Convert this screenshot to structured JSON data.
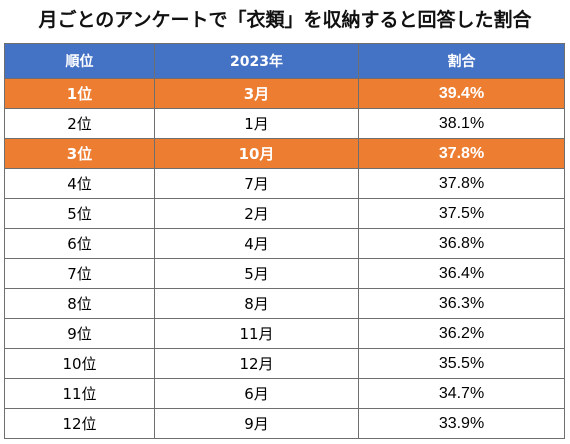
{
  "title": "月ごとのアンケートで「衣類」を収納すると回答した割合",
  "colors": {
    "header_bg": "#4472c4",
    "highlight_bg": "#ed7d31",
    "border": "#6f6f6f"
  },
  "table": {
    "headers": [
      "順位",
      "2023年",
      "割合"
    ],
    "rows": [
      {
        "rank": "1位",
        "month": "3月",
        "ratio": "39.4%",
        "highlight": true
      },
      {
        "rank": "2位",
        "month": "1月",
        "ratio": "38.1%",
        "highlight": false
      },
      {
        "rank": "3位",
        "month": "10月",
        "ratio": "37.8%",
        "highlight": true
      },
      {
        "rank": "4位",
        "month": "7月",
        "ratio": "37.8%",
        "highlight": false
      },
      {
        "rank": "5位",
        "month": "2月",
        "ratio": "37.5%",
        "highlight": false
      },
      {
        "rank": "6位",
        "month": "4月",
        "ratio": "36.8%",
        "highlight": false
      },
      {
        "rank": "7位",
        "month": "5月",
        "ratio": "36.4%",
        "highlight": false
      },
      {
        "rank": "8位",
        "month": "8月",
        "ratio": "36.3%",
        "highlight": false
      },
      {
        "rank": "9位",
        "month": "11月",
        "ratio": "36.2%",
        "highlight": false
      },
      {
        "rank": "10位",
        "month": "12月",
        "ratio": "35.5%",
        "highlight": false
      },
      {
        "rank": "11位",
        "month": "6月",
        "ratio": "34.7%",
        "highlight": false
      },
      {
        "rank": "12位",
        "month": "9月",
        "ratio": "33.9%",
        "highlight": false
      }
    ]
  }
}
